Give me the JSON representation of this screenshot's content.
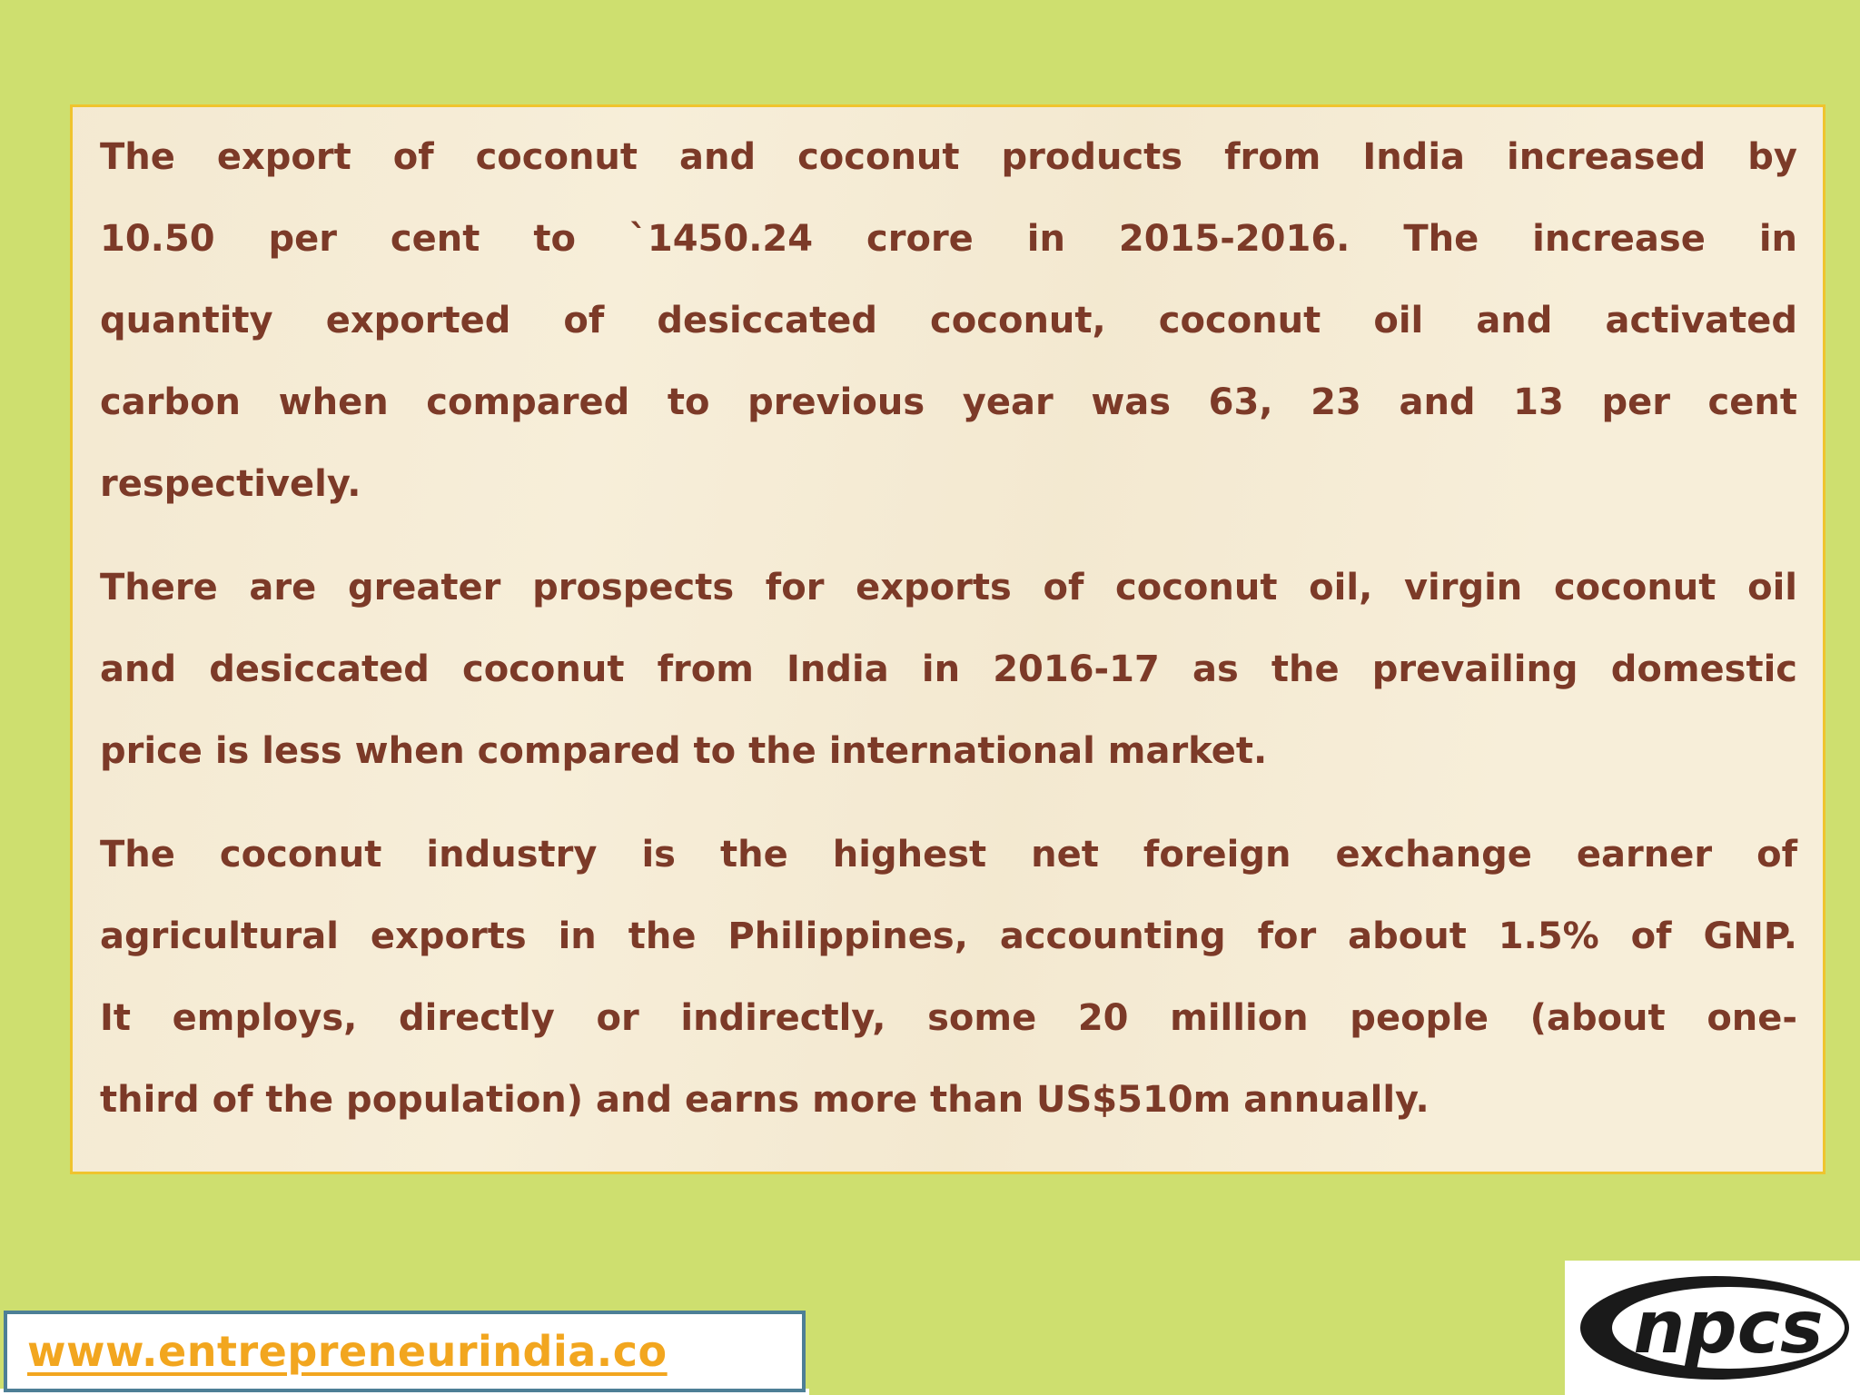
{
  "colors": {
    "background_green": "#CEDF6F",
    "box_beige": "#F7EED9",
    "box_border_yellow": "#EFC42E",
    "text_brown": "#7C3A28",
    "url_orange": "#F2A61F",
    "url_box_border_teal": "#4D7F96",
    "logo_black": "#1A1A1A",
    "white": "#FFFFFF"
  },
  "text_box": {
    "paragraphs": [
      {
        "lines": [
          "The export of coconut and coconut products from India increased by",
          "10.50 per cent to `1450.24 crore in 2015-2016. The increase in",
          "quantity exported of desiccated coconut, coconut oil and activated",
          "carbon when compared to previous year was 63, 23 and 13 per cent",
          "respectively."
        ]
      },
      {
        "lines": [
          "There are greater prospects for exports of coconut oil, virgin coconut oil",
          "and desiccated coconut from India in 2016-17 as the prevailing domestic",
          "price is less when compared to the international market."
        ]
      },
      {
        "lines": [
          "The coconut industry is the highest net foreign exchange earner of",
          "agricultural exports in the Philippines, accounting for about 1.5% of GNP.",
          "It employs, directly or indirectly, some 20 million people (about one-",
          "third of the population) and earns more than US$510m annually."
        ]
      }
    ]
  },
  "footer": {
    "website_url": "www.entrepreneurindia.co"
  },
  "logo": {
    "text": "npcs"
  }
}
